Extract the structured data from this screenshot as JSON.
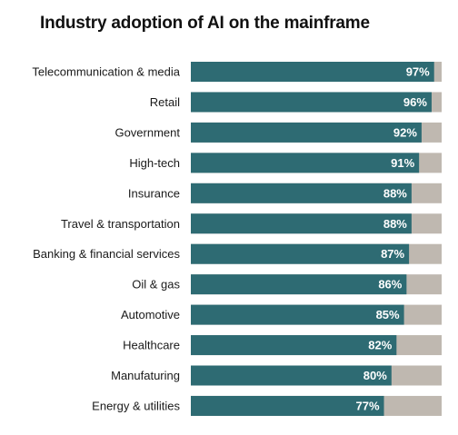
{
  "chart_data": {
    "type": "bar",
    "orientation": "horizontal",
    "stacked": true,
    "title": "Industry adoption of AI on the mainframe",
    "categories": [
      "Telecommunication &  media",
      "Retail",
      "Government",
      "High-tech",
      "Insurance",
      "Travel & transportation",
      "Banking & financial services",
      "Oil & gas",
      "Automotive",
      "Healthcare",
      "Manufaturing",
      "Energy & utilities"
    ],
    "values": [
      97,
      96,
      92,
      91,
      88,
      88,
      87,
      86,
      85,
      82,
      80,
      77
    ],
    "value_labels": [
      "97%",
      "96%",
      "92%",
      "91%",
      "88%",
      "88%",
      "87%",
      "86%",
      "85%",
      "82%",
      "80%",
      "77%"
    ],
    "xlim": [
      0,
      100
    ],
    "unit": "%",
    "grid": false,
    "legend": "none",
    "colors": {
      "value": "#2e6b73",
      "remainder": "#bfb8b0"
    }
  }
}
